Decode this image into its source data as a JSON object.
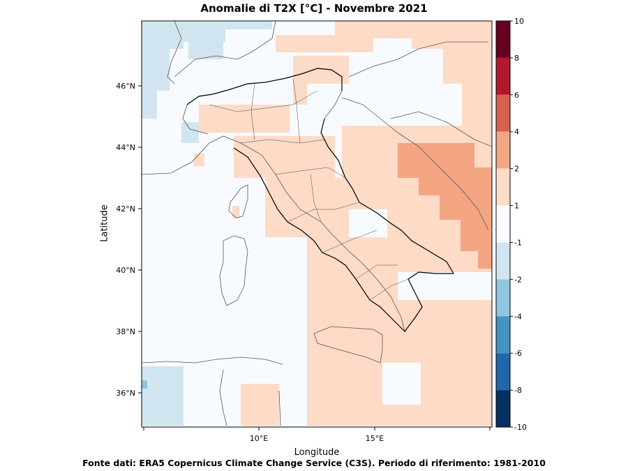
{
  "header": {
    "title": "Anomalie di T2X  [°C] - Novembre 2021"
  },
  "footer": {
    "source": "Fonte dati: ERA5 Copernicus Climate Change Service (C3S). Periodo di riferimento: 1981-2010"
  },
  "axes": {
    "xlabel": "Longitude",
    "ylabel": "Latitude",
    "x_ticks": [
      "10°E",
      "15°E"
    ],
    "y_ticks": [
      "46°N",
      "44°N",
      "42°N",
      "40°N",
      "38°N",
      "36°N"
    ]
  },
  "colorbar": {
    "levels": [
      "10",
      "8",
      "6",
      "4",
      "2",
      "1",
      "-1",
      "-2",
      "-4",
      "-6",
      "-8",
      "-10"
    ],
    "colors": [
      "#67001f",
      "#b2182b",
      "#d6604d",
      "#f4a582",
      "#fddbc7",
      "#f7fbff",
      "#d1e5f0",
      "#92c5de",
      "#4393c3",
      "#2166ac",
      "#053061"
    ]
  },
  "map": {
    "lon_range": [
      5,
      20
    ],
    "lat_range": [
      35,
      48
    ],
    "classes": {
      "below": "#d1e5f0",
      "neutral": "#f7fbff",
      "above": "#fddbc7",
      "strong": "#f4a582"
    }
  }
}
